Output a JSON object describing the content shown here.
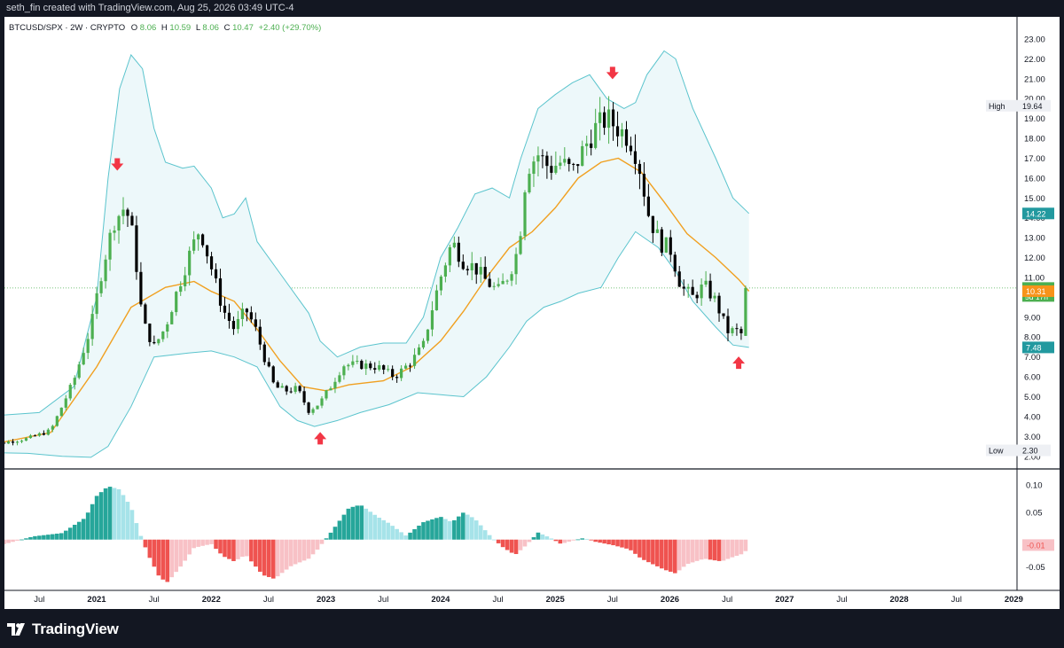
{
  "header": {
    "attribution": "seth_fin created with TradingView.com, Aug 25, 2026 03:49 UTC-4"
  },
  "legend": {
    "symbol": "BTCUSD/SPX · 2W · CRYPTO",
    "o_label": "O",
    "o_value": "8.06",
    "h_label": "H",
    "h_value": "10.59",
    "l_label": "L",
    "l_value": "8.06",
    "c_label": "C",
    "c_value": "10.47",
    "change": "+2.40 (+29.70%)"
  },
  "footer": {
    "brand": "TradingView"
  },
  "colors": {
    "up": "#4caf50",
    "down": "#000000",
    "band": "#5bc4cd",
    "band_fill": "#edf8fa",
    "basis": "#f0a020",
    "hist_up_strong": "#26a69a",
    "hist_up_weak": "#a6e3e9",
    "hist_down_strong": "#ef5350",
    "hist_down_weak": "#f8c1c6",
    "arrow": "#f23645"
  },
  "chart_data": [
    {
      "type": "candlestick",
      "title": "BTCUSD/SPX · 2W · CRYPTO",
      "x_ticks": [
        "Jul",
        "2021",
        "Jul",
        "2022",
        "Jul",
        "2023",
        "Jul",
        "2024",
        "Jul",
        "2025",
        "Jul",
        "2026",
        "Jul",
        "2027",
        "Jul",
        "2028",
        "Jul",
        "2029"
      ],
      "y_ticks": [
        "2.00",
        "3.00",
        "4.00",
        "5.00",
        "6.00",
        "7.00",
        "8.00",
        "9.00",
        "10.00",
        "11.00",
        "12.00",
        "13.00",
        "14.00",
        "15.00",
        "16.00",
        "17.00",
        "18.00",
        "19.00",
        "20.00",
        "21.00",
        "22.00",
        "23.00"
      ],
      "ylim": [
        1.9,
        23.4
      ],
      "last": {
        "open": 8.06,
        "high": 10.59,
        "low": 8.06,
        "close": 10.47,
        "change": 2.4,
        "change_pct": 29.7
      },
      "series": [
        {
          "name": "price",
          "kind": "candles",
          "t_start": 2020.0,
          "t_step": 0.0385,
          "close_path": [
            [
              2020.0,
              2.5
            ],
            [
              2020.4,
              2.9
            ],
            [
              2020.6,
              3.3
            ],
            [
              2020.8,
              5.8
            ],
            [
              2020.95,
              8.5
            ],
            [
              2021.05,
              11.5
            ],
            [
              2021.15,
              13.8
            ],
            [
              2021.25,
              14.6
            ],
            [
              2021.32,
              13.0
            ],
            [
              2021.4,
              8.8
            ],
            [
              2021.5,
              7.5
            ],
            [
              2021.6,
              8.5
            ],
            [
              2021.7,
              10.3
            ],
            [
              2021.8,
              12.0
            ],
            [
              2021.9,
              13.5
            ],
            [
              2022.0,
              11.5
            ],
            [
              2022.1,
              9.4
            ],
            [
              2022.2,
              8.4
            ],
            [
              2022.3,
              9.4
            ],
            [
              2022.38,
              8.5
            ],
            [
              2022.45,
              7.2
            ],
            [
              2022.55,
              5.5
            ],
            [
              2022.65,
              5.3
            ],
            [
              2022.75,
              5.4
            ],
            [
              2022.85,
              4.3
            ],
            [
              2022.95,
              4.7
            ],
            [
              2023.05,
              5.6
            ],
            [
              2023.15,
              6.6
            ],
            [
              2023.3,
              6.6
            ],
            [
              2023.45,
              6.5
            ],
            [
              2023.6,
              6.0
            ],
            [
              2023.75,
              6.8
            ],
            [
              2023.85,
              7.6
            ],
            [
              2023.92,
              9.3
            ],
            [
              2024.0,
              11.0
            ],
            [
              2024.1,
              12.8
            ],
            [
              2024.2,
              11.8
            ],
            [
              2024.3,
              11.5
            ],
            [
              2024.4,
              10.8
            ],
            [
              2024.5,
              10.3
            ],
            [
              2024.6,
              11.2
            ],
            [
              2024.68,
              12.5
            ],
            [
              2024.75,
              16.5
            ],
            [
              2024.85,
              17.2
            ],
            [
              2024.95,
              16.5
            ],
            [
              2025.05,
              16.8
            ],
            [
              2025.15,
              16.3
            ],
            [
              2025.25,
              17.5
            ],
            [
              2025.35,
              18.5
            ],
            [
              2025.45,
              19.0
            ],
            [
              2025.55,
              18.5
            ],
            [
              2025.65,
              18.0
            ],
            [
              2025.72,
              17.0
            ],
            [
              2025.82,
              14.0
            ],
            [
              2025.92,
              12.7
            ],
            [
              2026.0,
              12.5
            ],
            [
              2026.1,
              10.5
            ],
            [
              2026.2,
              10.0
            ],
            [
              2026.3,
              10.6
            ],
            [
              2026.4,
              9.8
            ],
            [
              2026.5,
              8.3
            ],
            [
              2026.58,
              8.3
            ],
            [
              2026.65,
              8.06
            ],
            [
              2026.69,
              10.47
            ]
          ]
        },
        {
          "name": "basis",
          "kind": "line",
          "points": [
            [
              2020.0,
              2.5
            ],
            [
              2020.6,
              3.2
            ],
            [
              2021.0,
              6.5
            ],
            [
              2021.3,
              9.5
            ],
            [
              2021.6,
              10.5
            ],
            [
              2021.85,
              10.8
            ],
            [
              2022.0,
              10.3
            ],
            [
              2022.2,
              9.8
            ],
            [
              2022.4,
              8.4
            ],
            [
              2022.6,
              6.8
            ],
            [
              2022.8,
              5.5
            ],
            [
              2023.0,
              5.3
            ],
            [
              2023.2,
              5.6
            ],
            [
              2023.5,
              5.8
            ],
            [
              2023.75,
              6.5
            ],
            [
              2024.0,
              7.8
            ],
            [
              2024.2,
              9.3
            ],
            [
              2024.4,
              11.0
            ],
            [
              2024.6,
              12.5
            ],
            [
              2024.8,
              13.3
            ],
            [
              2025.0,
              14.5
            ],
            [
              2025.2,
              16.0
            ],
            [
              2025.4,
              16.8
            ],
            [
              2025.55,
              17.0
            ],
            [
              2025.75,
              16.3
            ],
            [
              2025.95,
              14.8
            ],
            [
              2026.15,
              13.2
            ],
            [
              2026.4,
              12.0
            ],
            [
              2026.6,
              10.9
            ],
            [
              2026.69,
              10.31
            ]
          ]
        },
        {
          "name": "upper",
          "kind": "line",
          "points": [
            [
              2020.0,
              4.0
            ],
            [
              2020.5,
              4.2
            ],
            [
              2020.8,
              5.5
            ],
            [
              2021.0,
              10.0
            ],
            [
              2021.1,
              16.0
            ],
            [
              2021.2,
              20.5
            ],
            [
              2021.3,
              22.2
            ],
            [
              2021.4,
              21.5
            ],
            [
              2021.5,
              18.5
            ],
            [
              2021.6,
              16.8
            ],
            [
              2021.75,
              16.5
            ],
            [
              2021.85,
              16.6
            ],
            [
              2022.0,
              15.5
            ],
            [
              2022.1,
              14.0
            ],
            [
              2022.2,
              14.2
            ],
            [
              2022.3,
              15.0
            ],
            [
              2022.4,
              12.8
            ],
            [
              2022.6,
              11.2
            ],
            [
              2022.85,
              9.2
            ],
            [
              2022.95,
              7.8
            ],
            [
              2023.1,
              7.0
            ],
            [
              2023.3,
              7.5
            ],
            [
              2023.5,
              7.7
            ],
            [
              2023.7,
              7.7
            ],
            [
              2023.85,
              9.0
            ],
            [
              2024.0,
              12.0
            ],
            [
              2024.15,
              13.5
            ],
            [
              2024.3,
              15.2
            ],
            [
              2024.45,
              15.5
            ],
            [
              2024.6,
              15.0
            ],
            [
              2024.7,
              17.0
            ],
            [
              2024.85,
              19.5
            ],
            [
              2025.0,
              20.2
            ],
            [
              2025.15,
              20.8
            ],
            [
              2025.3,
              21.2
            ],
            [
              2025.45,
              20.0
            ],
            [
              2025.6,
              19.5
            ],
            [
              2025.7,
              19.8
            ],
            [
              2025.8,
              21.2
            ],
            [
              2025.95,
              22.4
            ],
            [
              2026.05,
              22.0
            ],
            [
              2026.2,
              19.5
            ],
            [
              2026.4,
              17.0
            ],
            [
              2026.55,
              15.0
            ],
            [
              2026.69,
              14.22
            ]
          ]
        },
        {
          "name": "lower",
          "kind": "line",
          "points": [
            [
              2020.0,
              2.2
            ],
            [
              2020.4,
              2.15
            ],
            [
              2020.7,
              2.0
            ],
            [
              2020.95,
              1.95
            ],
            [
              2021.1,
              2.5
            ],
            [
              2021.3,
              4.5
            ],
            [
              2021.5,
              7.0
            ],
            [
              2021.8,
              7.2
            ],
            [
              2022.0,
              7.3
            ],
            [
              2022.2,
              7.0
            ],
            [
              2022.4,
              6.5
            ],
            [
              2022.6,
              4.5
            ],
            [
              2022.75,
              3.8
            ],
            [
              2022.9,
              3.5
            ],
            [
              2023.1,
              3.8
            ],
            [
              2023.3,
              4.2
            ],
            [
              2023.55,
              4.6
            ],
            [
              2023.8,
              5.2
            ],
            [
              2024.0,
              5.1
            ],
            [
              2024.2,
              5.0
            ],
            [
              2024.4,
              6.0
            ],
            [
              2024.6,
              7.5
            ],
            [
              2024.75,
              8.8
            ],
            [
              2024.9,
              9.5
            ],
            [
              2025.05,
              9.8
            ],
            [
              2025.2,
              10.2
            ],
            [
              2025.4,
              10.5
            ],
            [
              2025.55,
              12.0
            ],
            [
              2025.7,
              13.3
            ],
            [
              2025.9,
              12.5
            ],
            [
              2026.05,
              11.3
            ],
            [
              2026.2,
              9.8
            ],
            [
              2026.4,
              8.5
            ],
            [
              2026.55,
              7.6
            ],
            [
              2026.69,
              7.48
            ]
          ]
        }
      ],
      "price_labels": [
        {
          "text": "High",
          "value": "19.64",
          "y": 19.64,
          "style": "plain"
        },
        {
          "text": "",
          "value": "14.22",
          "y": 14.22,
          "style": "band"
        },
        {
          "text": "",
          "value": "10.47",
          "sub": "5d 17h",
          "y": 10.47,
          "style": "up"
        },
        {
          "text": "",
          "value": "10.31",
          "y": 10.31,
          "style": "basis"
        },
        {
          "text": "",
          "value": "7.48",
          "y": 7.48,
          "style": "band"
        },
        {
          "text": "Low",
          "value": "2.30",
          "y": 2.3,
          "style": "plain"
        }
      ],
      "annotations": [
        {
          "type": "arrow-down",
          "t": 2021.18,
          "y": 16.6
        },
        {
          "type": "arrow-up",
          "t": 2022.95,
          "y": 3.0
        },
        {
          "type": "arrow-down",
          "t": 2025.5,
          "y": 21.2
        },
        {
          "type": "arrow-up",
          "t": 2026.6,
          "y": 6.8
        }
      ]
    },
    {
      "type": "bar",
      "title": "",
      "y_ticks": [
        "0.10",
        "0.05",
        "-0.05"
      ],
      "last_value": "-0.01",
      "ylim": [
        -0.085,
        0.115
      ],
      "values_path": [
        [
          2020.0,
          -0.015
        ],
        [
          2020.2,
          -0.008
        ],
        [
          2020.45,
          0.006
        ],
        [
          2020.7,
          0.012
        ],
        [
          2020.9,
          0.04
        ],
        [
          2021.0,
          0.08
        ],
        [
          2021.1,
          0.098
        ],
        [
          2021.2,
          0.092
        ],
        [
          2021.3,
          0.06
        ],
        [
          2021.38,
          0.01
        ],
        [
          2021.45,
          -0.028
        ],
        [
          2021.55,
          -0.07
        ],
        [
          2021.62,
          -0.078
        ],
        [
          2021.75,
          -0.045
        ],
        [
          2021.85,
          -0.015
        ],
        [
          2022.0,
          -0.008
        ],
        [
          2022.1,
          -0.03
        ],
        [
          2022.2,
          -0.04
        ],
        [
          2022.3,
          -0.028
        ],
        [
          2022.45,
          -0.065
        ],
        [
          2022.55,
          -0.072
        ],
        [
          2022.7,
          -0.048
        ],
        [
          2022.85,
          -0.035
        ],
        [
          2022.92,
          -0.02
        ],
        [
          2023.05,
          0.015
        ],
        [
          2023.2,
          0.058
        ],
        [
          2023.3,
          0.064
        ],
        [
          2023.45,
          0.042
        ],
        [
          2023.55,
          0.03
        ],
        [
          2023.7,
          0.007
        ],
        [
          2023.85,
          0.032
        ],
        [
          2024.0,
          0.042
        ],
        [
          2024.1,
          0.032
        ],
        [
          2024.2,
          0.05
        ],
        [
          2024.3,
          0.038
        ],
        [
          2024.45,
          0.003
        ],
        [
          2024.55,
          -0.015
        ],
        [
          2024.65,
          -0.028
        ],
        [
          2024.75,
          -0.01
        ],
        [
          2024.85,
          0.013
        ],
        [
          2024.95,
          0.004
        ],
        [
          2025.05,
          -0.008
        ],
        [
          2025.15,
          -0.002
        ],
        [
          2025.25,
          0.003
        ],
        [
          2025.35,
          -0.004
        ],
        [
          2025.5,
          -0.01
        ],
        [
          2025.65,
          -0.018
        ],
        [
          2025.75,
          -0.035
        ],
        [
          2025.85,
          -0.045
        ],
        [
          2025.95,
          -0.055
        ],
        [
          2026.05,
          -0.062
        ],
        [
          2026.15,
          -0.045
        ],
        [
          2026.3,
          -0.035
        ],
        [
          2026.45,
          -0.04
        ],
        [
          2026.55,
          -0.032
        ],
        [
          2026.65,
          -0.025
        ],
        [
          2026.69,
          -0.01
        ]
      ]
    }
  ]
}
